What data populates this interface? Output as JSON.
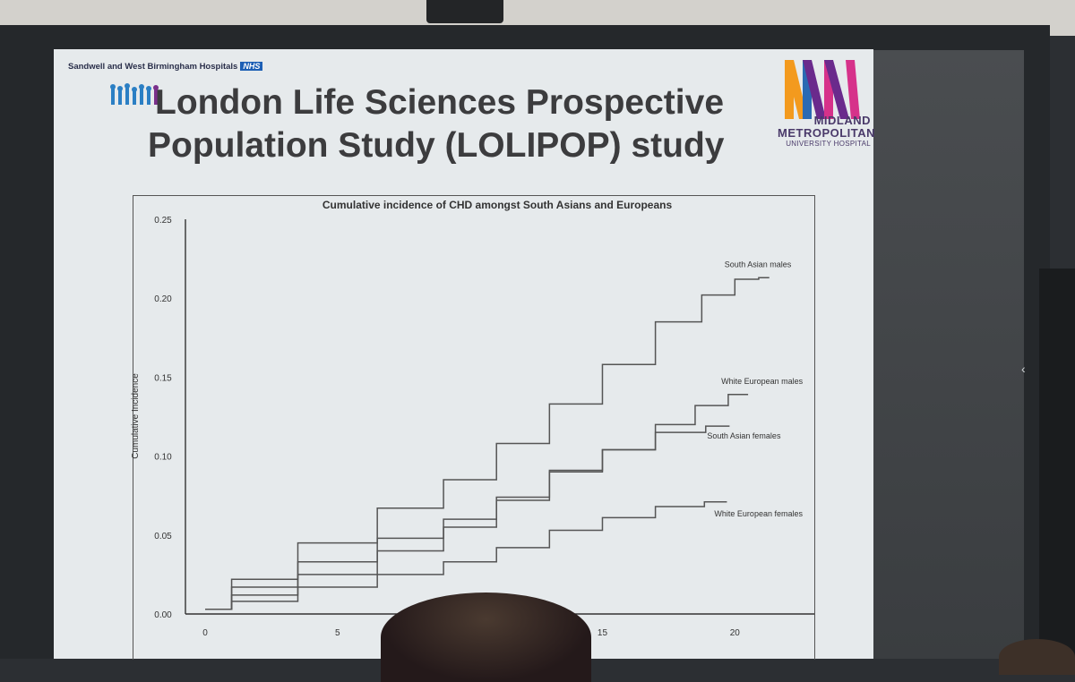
{
  "header": {
    "hospital": "Sandwell and West Birmingham Hospitals",
    "nhs": "NHS",
    "title_line1": "London Life Sciences Prospective",
    "title_line2": "Population Study (LOLIPOP) study",
    "logo_line1": "MIDLAND",
    "logo_line2": "METROPOLITAN",
    "logo_line3": "UNIVERSITY HOSPITAL"
  },
  "colors": {
    "line": "#555555",
    "slide": "#e6eaec",
    "logo_purple": "#6a2a8c",
    "logo_orange": "#f39a1e",
    "logo_pink": "#d6328a",
    "logo_blue": "#2a6ab3"
  },
  "chart_data": {
    "type": "line",
    "title": "Cumulative incidence of CHD amongst South Asians and Europeans",
    "xlabel": "",
    "ylabel": "Cumulative Incidence",
    "xlim": [
      0,
      23
    ],
    "ylim": [
      0,
      0.25
    ],
    "xticks": [
      0,
      5,
      15,
      20
    ],
    "xtick_labels": [
      "0",
      "5",
      "15",
      "20"
    ],
    "yticks": [
      0,
      0.05,
      0.1,
      0.15,
      0.2,
      0.25
    ],
    "ytick_labels": [
      "0.00",
      "0.05",
      "0.10",
      "0.15",
      "0.20",
      "0.25"
    ],
    "series": [
      {
        "name": "South Asian males",
        "x": [
          0,
          2,
          5,
          8,
          10,
          12,
          14,
          16,
          18,
          19.5,
          20.5,
          21.3
        ],
        "y": [
          0.003,
          0.022,
          0.045,
          0.067,
          0.085,
          0.108,
          0.133,
          0.158,
          0.185,
          0.202,
          0.212,
          0.213
        ]
      },
      {
        "name": "White European males",
        "x": [
          0,
          2,
          5,
          8,
          10,
          12,
          14,
          16,
          18,
          19,
          20.5
        ],
        "y": [
          0.003,
          0.012,
          0.025,
          0.04,
          0.055,
          0.072,
          0.091,
          0.104,
          0.12,
          0.132,
          0.139
        ]
      },
      {
        "name": "South Asian females",
        "x": [
          0,
          2,
          5,
          8,
          10,
          12,
          14,
          16,
          18,
          19.8
        ],
        "y": [
          0.003,
          0.017,
          0.033,
          0.048,
          0.06,
          0.074,
          0.09,
          0.104,
          0.115,
          0.119
        ]
      },
      {
        "name": "White European females",
        "x": [
          0,
          2,
          5,
          8,
          10,
          12,
          14,
          16,
          18,
          19.7
        ],
        "y": [
          0.003,
          0.008,
          0.017,
          0.025,
          0.033,
          0.042,
          0.053,
          0.061,
          0.068,
          0.071
        ]
      }
    ],
    "legend_labels": [
      "South Asian males",
      "White European males",
      "South Asian females",
      "White European females"
    ]
  }
}
